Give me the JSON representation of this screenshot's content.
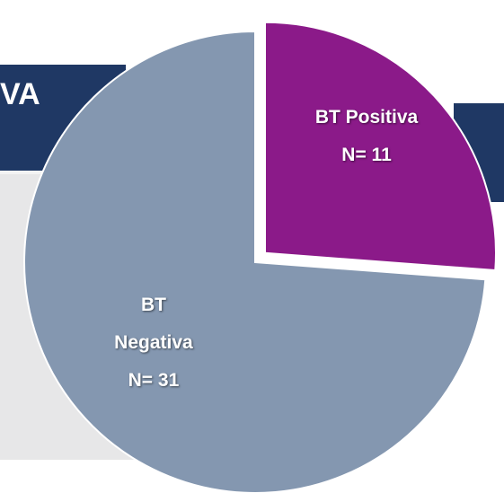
{
  "banner_text": "VA",
  "chart_data": {
    "type": "pie",
    "categories": [
      "BT Negativa",
      "BT Positiva"
    ],
    "values": [
      31,
      11
    ],
    "value_labels": [
      "N= 31",
      "N= 11"
    ],
    "colors": [
      "#8497b0",
      "#8b1a89"
    ]
  }
}
